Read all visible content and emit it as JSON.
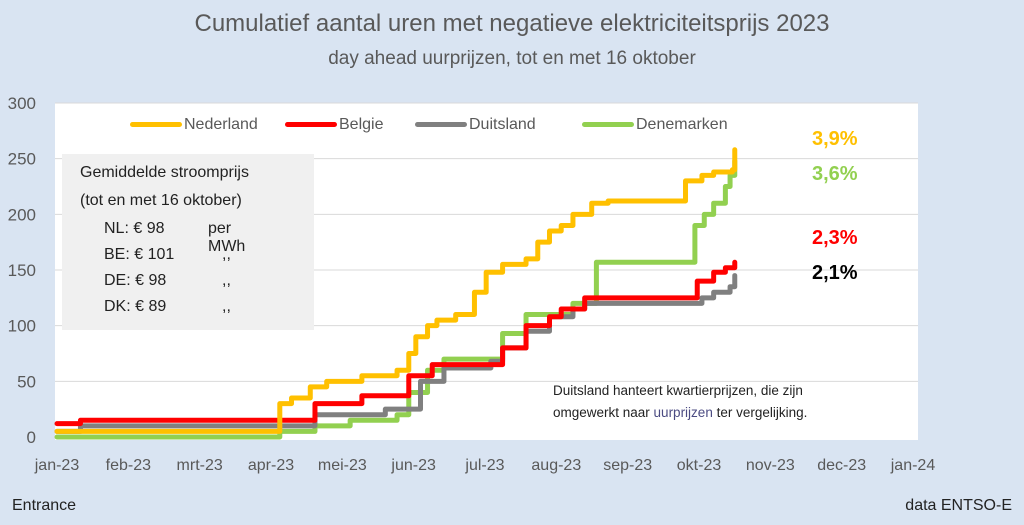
{
  "chart_data": {
    "type": "line",
    "title": "Cumulatief aantal uren met negatieve elektriciteitsprijs 2023",
    "subtitle": "day ahead uurprijzen, tot en met 16 oktober",
    "xlabel": "",
    "ylabel": "",
    "ylim": [
      0,
      300
    ],
    "yticks": [
      0,
      50,
      100,
      150,
      200,
      250,
      300
    ],
    "xlim_days": [
      0,
      365
    ],
    "x_unit": "day of year 2023",
    "xtick_labels": [
      "jan-23",
      "feb-23",
      "mrt-23",
      "apr-23",
      "mei-23",
      "jun-23",
      "jul-23",
      "aug-23",
      "sep-23",
      "okt-23",
      "nov-23",
      "dec-23",
      "jan-24"
    ],
    "grid": true,
    "legend_position": "top",
    "series": [
      {
        "name": "Nederland",
        "color": "#ffc000",
        "x": [
          0,
          88,
          95,
          100,
          108,
          115,
          130,
          145,
          150,
          153,
          158,
          162,
          170,
          178,
          183,
          190,
          200,
          205,
          210,
          215,
          220,
          228,
          235,
          265,
          268,
          275,
          280,
          288,
          289
        ],
        "values": [
          5,
          5,
          30,
          35,
          45,
          50,
          55,
          60,
          75,
          90,
          100,
          105,
          110,
          130,
          148,
          155,
          160,
          175,
          185,
          190,
          200,
          210,
          212,
          212,
          230,
          235,
          238,
          240,
          258
        ]
      },
      {
        "name": "Belgie",
        "color": "#ff0000",
        "x": [
          0,
          10,
          88,
          110,
          130,
          150,
          160,
          185,
          190,
          200,
          210,
          215,
          225,
          270,
          273,
          280,
          285,
          289
        ],
        "values": [
          12,
          15,
          15,
          30,
          37,
          55,
          65,
          65,
          80,
          100,
          108,
          115,
          125,
          125,
          140,
          148,
          152,
          157
        ]
      },
      {
        "name": "Duitsland",
        "color": "#808080",
        "x": [
          0,
          10,
          88,
          110,
          140,
          155,
          165,
          185,
          190,
          200,
          210,
          220,
          225,
          265,
          275,
          280,
          287,
          289
        ],
        "values": [
          5,
          10,
          10,
          20,
          25,
          50,
          62,
          68,
          80,
          95,
          108,
          115,
          120,
          120,
          125,
          130,
          135,
          145
        ]
      },
      {
        "name": "Denemarken",
        "color": "#92d050",
        "x": [
          0,
          80,
          95,
          110,
          125,
          145,
          150,
          158,
          165,
          180,
          190,
          200,
          220,
          230,
          270,
          272,
          276,
          280,
          285,
          287,
          289
        ],
        "values": [
          0,
          0,
          5,
          10,
          15,
          20,
          40,
          60,
          70,
          70,
          93,
          110,
          120,
          157,
          157,
          190,
          200,
          210,
          225,
          235,
          248
        ]
      }
    ],
    "annotations": {
      "percentages": [
        {
          "country": "Nederland",
          "label": "3,9%",
          "color": "#ffc000"
        },
        {
          "country": "Denemarken",
          "label": "3,6%",
          "color": "#92d050"
        },
        {
          "country": "Belgie",
          "label": "2,3%",
          "color": "#ff0000"
        },
        {
          "country": "Duitsland",
          "label": "2,1%",
          "color": "#000000"
        }
      ],
      "price_box": {
        "heading1": "Gemiddelde stroomprijs",
        "heading2": "(tot en met 16 oktober)",
        "rows": [
          {
            "label": "NL: € 98",
            "unit": "per MWh"
          },
          {
            "label": "BE: € 101",
            "unit": ",,"
          },
          {
            "label": "DE: € 98",
            "unit": ",,"
          },
          {
            "label": "DK: € 89",
            "unit": ",,"
          }
        ]
      },
      "note_part1": "Duitsland hanteert kwartierprijzen, die zijn",
      "note_part2a": "omgewerkt naar ",
      "note_part2b": "uurprijzen",
      "note_part2c": " ter vergelijking."
    }
  },
  "footer": {
    "left": "Entrance",
    "right": "data ENTSO-E"
  }
}
